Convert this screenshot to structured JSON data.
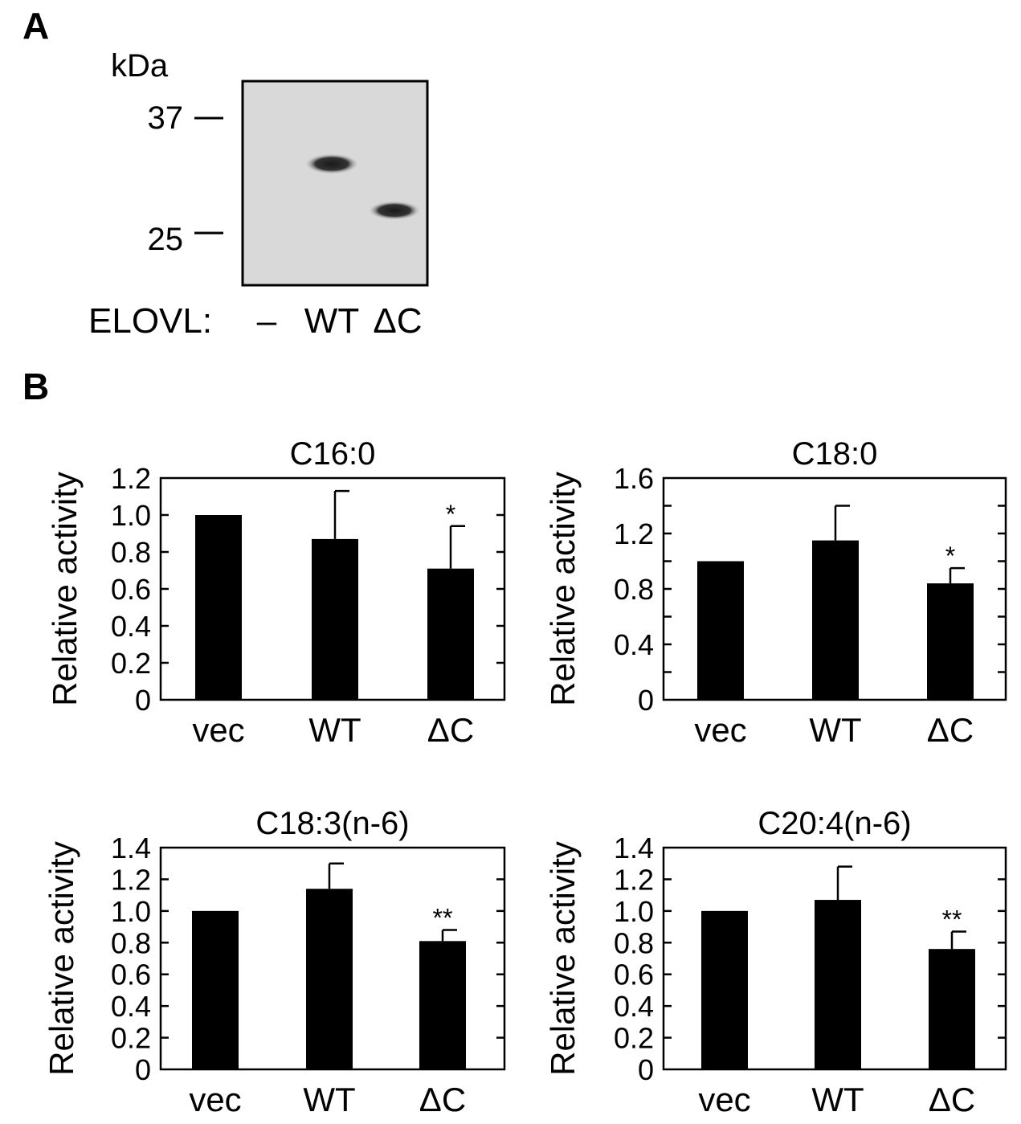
{
  "panel_a": {
    "letter": "A",
    "unit": "kDa",
    "markers": [
      "37",
      "25"
    ],
    "row_label": "ELOVL:",
    "lanes": [
      "–",
      "WT",
      "ΔC"
    ]
  },
  "panel_b": {
    "letter": "B"
  },
  "chart_data": [
    {
      "type": "bar",
      "title": "C16:0",
      "ylabel": "Relative activity",
      "categories": [
        "vec",
        "WT",
        "ΔC"
      ],
      "values": [
        1.0,
        0.87,
        0.71
      ],
      "errors": [
        0,
        0.26,
        0.23
      ],
      "significance": [
        "",
        "",
        "*"
      ],
      "ylim": [
        0,
        1.2
      ],
      "yticks": [
        "0",
        "0.2",
        "0.4",
        "0.6",
        "0.8",
        "1.0",
        "1.2"
      ],
      "minor_ticks": false,
      "color": "#000000"
    },
    {
      "type": "bar",
      "title": "C18:0",
      "ylabel": "Relative activity",
      "categories": [
        "vec",
        "WT",
        "ΔC"
      ],
      "values": [
        1.0,
        1.15,
        0.84
      ],
      "errors": [
        0,
        0.25,
        0.11
      ],
      "significance": [
        "",
        "",
        "*"
      ],
      "ylim": [
        0,
        1.6
      ],
      "yticks": [
        "0",
        "0.4",
        "0.8",
        "1.2",
        "1.6"
      ],
      "minor_ticks": true,
      "color": "#000000"
    },
    {
      "type": "bar",
      "title": "C18:3(n-6)",
      "ylabel": "Relative activity",
      "categories": [
        "vec",
        "WT",
        "ΔC"
      ],
      "values": [
        1.0,
        1.14,
        0.81
      ],
      "errors": [
        0,
        0.16,
        0.07
      ],
      "significance": [
        "",
        "",
        "**"
      ],
      "ylim": [
        0,
        1.4
      ],
      "yticks": [
        "0",
        "0.2",
        "0.4",
        "0.6",
        "0.8",
        "1.0",
        "1.2",
        "1.4"
      ],
      "minor_ticks": false,
      "color": "#000000"
    },
    {
      "type": "bar",
      "title": "C20:4(n-6)",
      "ylabel": "Relative activity",
      "categories": [
        "vec",
        "WT",
        "ΔC"
      ],
      "values": [
        1.0,
        1.07,
        0.76
      ],
      "errors": [
        0,
        0.21,
        0.11
      ],
      "significance": [
        "",
        "",
        "**"
      ],
      "ylim": [
        0,
        1.4
      ],
      "yticks": [
        "0",
        "0.2",
        "0.4",
        "0.6",
        "0.8",
        "1.0",
        "1.2",
        "1.4"
      ],
      "minor_ticks": false,
      "color": "#000000"
    }
  ]
}
